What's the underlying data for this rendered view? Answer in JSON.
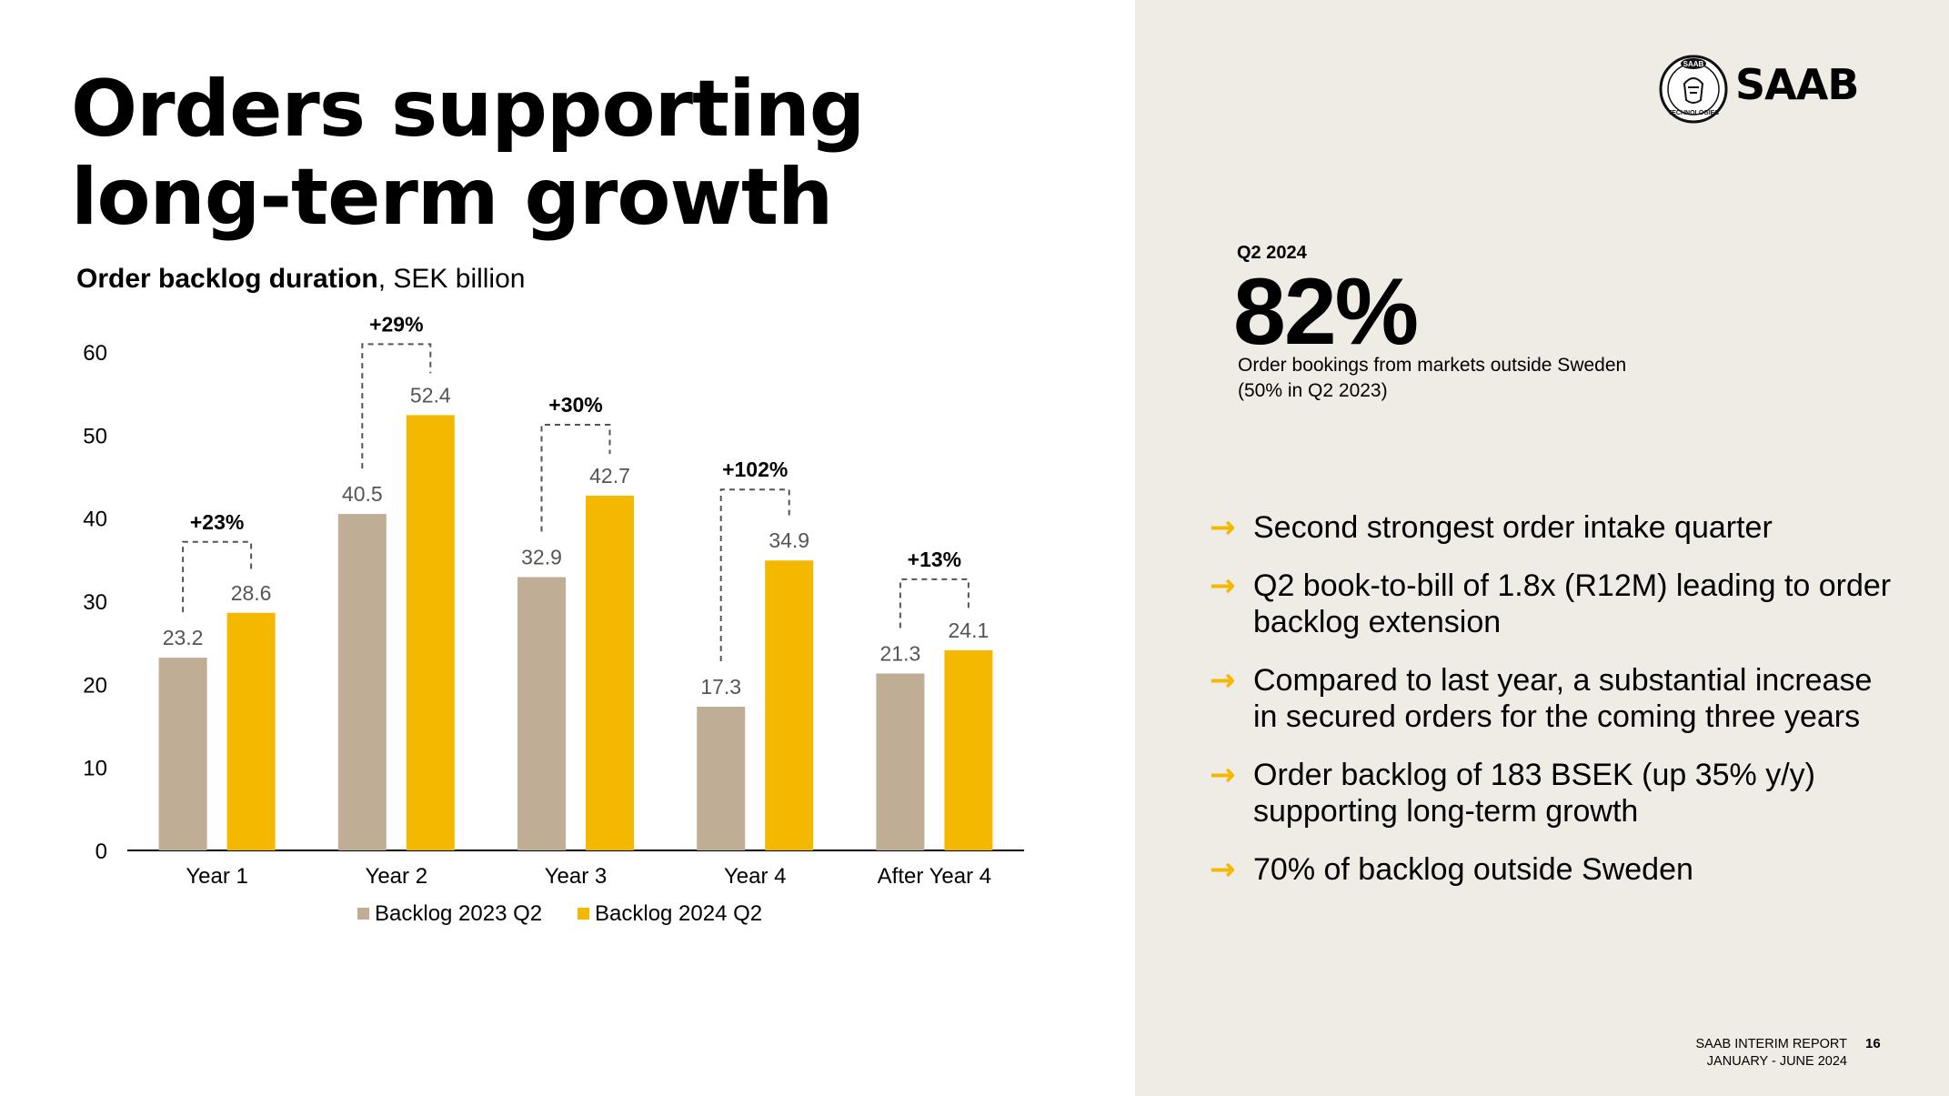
{
  "title": {
    "line1": "Orders supporting",
    "line2": "long-term growth"
  },
  "chart_heading": {
    "bold": "Order backlog duration",
    "rest": ", SEK billion"
  },
  "chart_data": {
    "type": "bar",
    "categories": [
      "Year 1",
      "Year 2",
      "Year 3",
      "Year 4",
      "After Year 4"
    ],
    "series": [
      {
        "name": "Backlog 2023 Q2",
        "color": "#bfae95",
        "values": [
          23.2,
          40.5,
          32.9,
          17.3,
          21.3
        ]
      },
      {
        "name": "Backlog 2024 Q2",
        "color": "#f5b800",
        "values": [
          28.6,
          52.4,
          42.7,
          34.9,
          24.1
        ]
      }
    ],
    "growth_labels": [
      "+23%",
      "+29%",
      "+30%",
      "+102%",
      "+13%"
    ],
    "yticks": [
      0,
      10,
      20,
      30,
      40,
      50,
      60
    ],
    "ylim": [
      0,
      60
    ],
    "grid": false,
    "legend": "bottom"
  },
  "logo": {
    "emblem_text": "SAAB",
    "emblem_sub": "TECHNOLOGIES",
    "wordmark": "SAAB"
  },
  "kpi": {
    "label": "Q2 2024",
    "value": "82%",
    "desc_line1": "Order bookings from markets outside Sweden",
    "desc_line2": "(50% in Q2 2023)"
  },
  "bullets": [
    "Second strongest order intake quarter",
    "Q2 book-to-bill of 1.8x (R12M) leading to order backlog extension",
    "Compared to last year, a substantial increase in secured orders for the coming three years",
    "Order backlog of 183 BSEK (up 35% y/y) supporting long-term growth",
    "70% of backlog outside Sweden"
  ],
  "footer": {
    "line1": "SAAB INTERIM REPORT",
    "line2": "JANUARY - JUNE 2024",
    "page": "16"
  },
  "colors": {
    "accent": "#f5b800",
    "muted_bar": "#bfae95",
    "panel": "#efebe5"
  }
}
